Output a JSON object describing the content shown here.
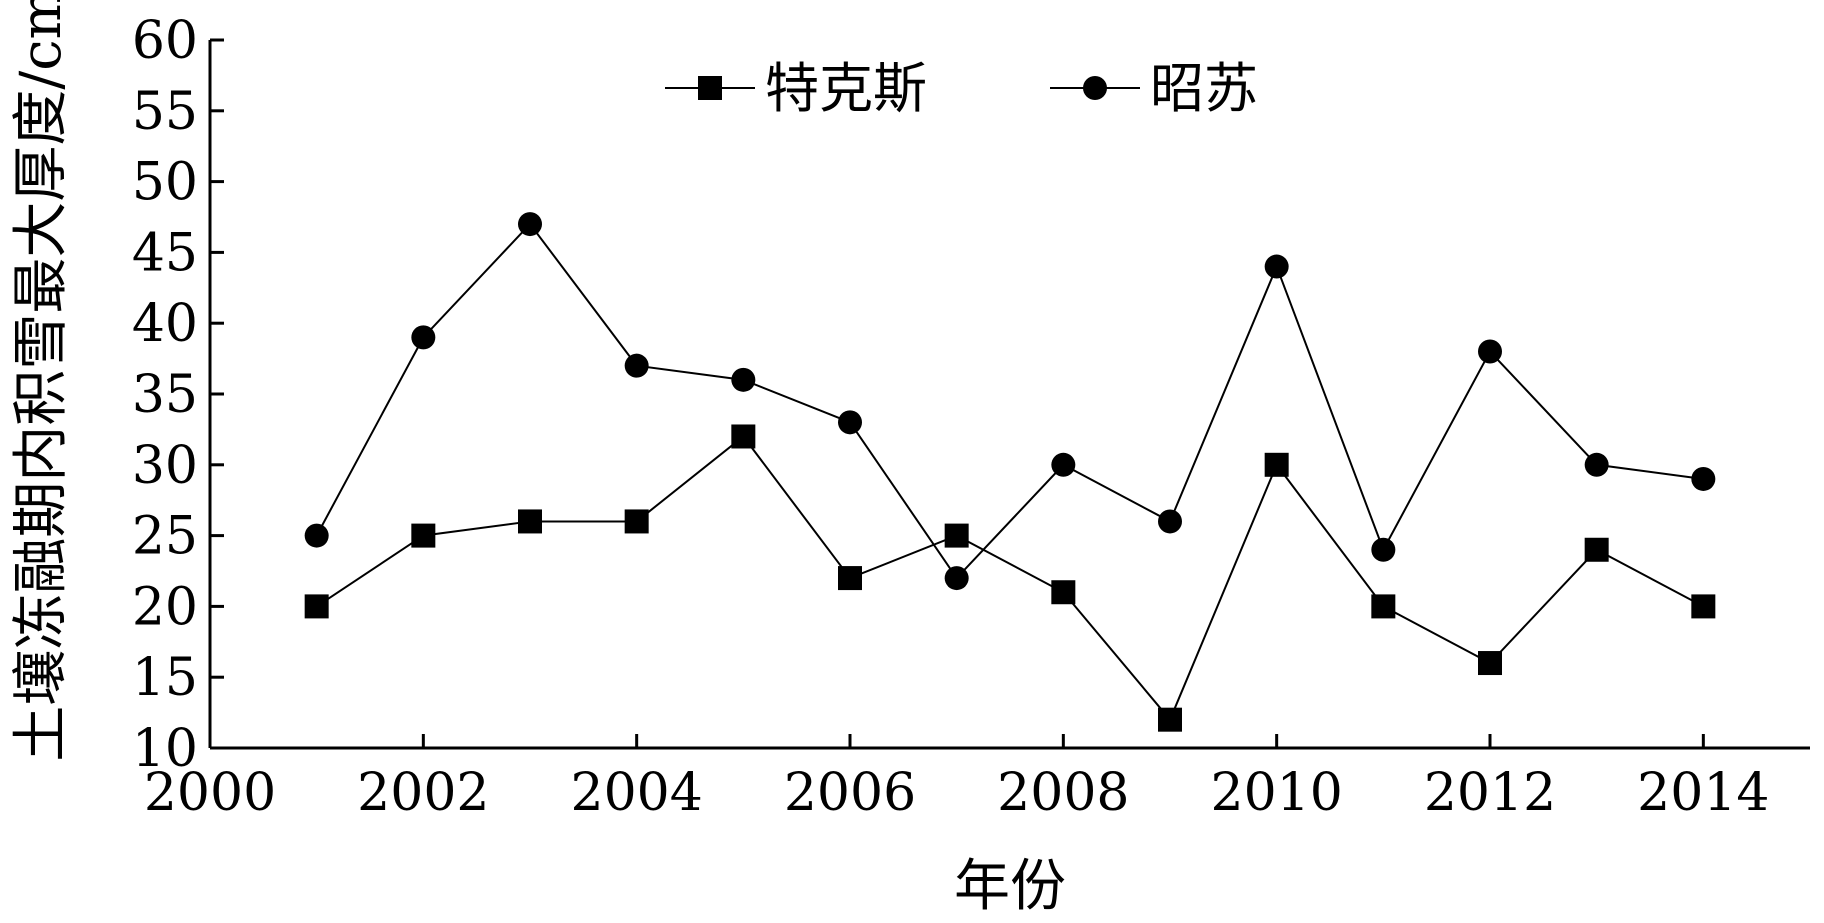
{
  "chart_data": {
    "type": "line",
    "xlabel": "年份",
    "ylabel": "土壤冻融期内积雪最大厚度/cm",
    "xlim": [
      2000,
      2015
    ],
    "ylim": [
      10,
      60
    ],
    "xticks": [
      2000,
      2002,
      2004,
      2006,
      2008,
      2010,
      2012,
      2014
    ],
    "yticks": [
      10,
      15,
      20,
      25,
      30,
      35,
      40,
      45,
      50,
      55,
      60
    ],
    "grid": false,
    "legend_position": "top-center",
    "x": [
      2001,
      2002,
      2003,
      2004,
      2005,
      2006,
      2007,
      2008,
      2009,
      2010,
      2011,
      2012,
      2013,
      2014
    ],
    "series": [
      {
        "name": "特克斯",
        "marker": "square",
        "color": "#000000",
        "values": [
          20,
          25,
          26,
          26,
          32,
          22,
          25,
          21,
          12,
          30,
          20,
          16,
          24,
          20
        ]
      },
      {
        "name": "昭苏",
        "marker": "circle",
        "color": "#000000",
        "values": [
          25,
          39,
          47,
          37,
          36,
          33,
          22,
          30,
          26,
          44,
          24,
          38,
          30,
          29
        ]
      }
    ]
  }
}
